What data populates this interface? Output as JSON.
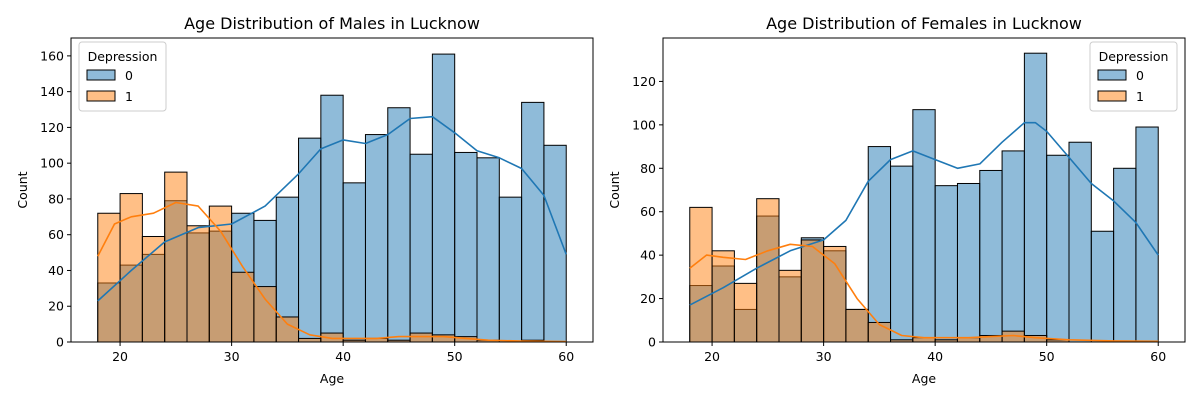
{
  "chart_data": [
    {
      "type": "bar",
      "title": "Age Distribution of Males in Lucknow",
      "xlabel": "Age",
      "ylabel": "Count",
      "xlim": [
        15.6,
        62.4
      ],
      "ylim": [
        0,
        170
      ],
      "xticks": [
        20,
        30,
        40,
        50,
        60
      ],
      "yticks": [
        0,
        20,
        40,
        60,
        80,
        100,
        120,
        140,
        160
      ],
      "bin_edges": [
        18,
        20,
        22,
        24,
        26,
        28,
        30,
        32,
        34,
        36,
        38,
        40,
        42,
        44,
        46,
        48,
        50,
        52,
        54,
        56,
        58,
        60
      ],
      "legend": {
        "title": "Depression",
        "position": "upper-left"
      },
      "series": [
        {
          "name": "0",
          "color": "#1f77b4",
          "values": [
            33,
            43,
            49,
            79,
            61,
            62,
            72,
            68,
            81,
            114,
            138,
            89,
            116,
            131,
            105,
            161,
            106,
            103,
            81,
            134,
            110
          ],
          "kde": [
            [
              18,
              23
            ],
            [
              21,
              40
            ],
            [
              24,
              56
            ],
            [
              27,
              64
            ],
            [
              30,
              66
            ],
            [
              33,
              76
            ],
            [
              36,
              94
            ],
            [
              38,
              108
            ],
            [
              40,
              113
            ],
            [
              42,
              111
            ],
            [
              44,
              116
            ],
            [
              46,
              125
            ],
            [
              48,
              126
            ],
            [
              50,
              117
            ],
            [
              52,
              107
            ],
            [
              54,
              103
            ],
            [
              56,
              97
            ],
            [
              58,
              82
            ],
            [
              60,
              49
            ]
          ]
        },
        {
          "name": "1",
          "color": "#ff7f0e",
          "values": [
            72,
            83,
            59,
            95,
            65,
            76,
            39,
            31,
            14,
            2,
            5,
            1,
            2,
            1,
            5,
            4,
            3,
            1,
            0,
            1,
            0
          ],
          "kde": [
            [
              18,
              48
            ],
            [
              19.5,
              66
            ],
            [
              21,
              70
            ],
            [
              23,
              72
            ],
            [
              25,
              78
            ],
            [
              27,
              76
            ],
            [
              29,
              62
            ],
            [
              31,
              42
            ],
            [
              33,
              24
            ],
            [
              35,
              10
            ],
            [
              37,
              4
            ],
            [
              39,
              2
            ],
            [
              41,
              2
            ],
            [
              43,
              2
            ],
            [
              45,
              3
            ],
            [
              47,
              3
            ],
            [
              49,
              3
            ],
            [
              51,
              2
            ],
            [
              53,
              1
            ],
            [
              56,
              0.5
            ],
            [
              60,
              0.3
            ]
          ]
        }
      ]
    },
    {
      "type": "bar",
      "title": "Age Distribution of Females in Lucknow",
      "xlabel": "Age",
      "ylabel": "Count",
      "xlim": [
        15.6,
        62.4
      ],
      "ylim": [
        0,
        140
      ],
      "xticks": [
        20,
        30,
        40,
        50,
        60
      ],
      "yticks": [
        0,
        20,
        40,
        60,
        80,
        100,
        120
      ],
      "bin_edges": [
        18,
        20,
        22,
        24,
        26,
        28,
        30,
        32,
        34,
        36,
        38,
        40,
        42,
        44,
        46,
        48,
        50,
        52,
        54,
        56,
        58,
        60
      ],
      "legend": {
        "title": "Depression",
        "position": "upper-right"
      },
      "series": [
        {
          "name": "0",
          "color": "#1f77b4",
          "values": [
            26,
            35,
            15,
            58,
            30,
            48,
            42,
            15,
            90,
            81,
            107,
            72,
            73,
            79,
            88,
            133,
            86,
            92,
            51,
            80,
            99
          ],
          "kde": [
            [
              18,
              17
            ],
            [
              21,
              25
            ],
            [
              24,
              34
            ],
            [
              27,
              42
            ],
            [
              30,
              47
            ],
            [
              32,
              56
            ],
            [
              34,
              74
            ],
            [
              36,
              84
            ],
            [
              38,
              88
            ],
            [
              40,
              84
            ],
            [
              42,
              80
            ],
            [
              44,
              82
            ],
            [
              46,
              92
            ],
            [
              48,
              101
            ],
            [
              49,
              101
            ],
            [
              50,
              97
            ],
            [
              52,
              85
            ],
            [
              54,
              73
            ],
            [
              56,
              65
            ],
            [
              58,
              55
            ],
            [
              60,
              40
            ]
          ]
        },
        {
          "name": "1",
          "color": "#ff7f0e",
          "values": [
            62,
            42,
            27,
            66,
            33,
            47,
            44,
            15,
            9,
            1,
            2,
            1,
            2,
            3,
            5,
            3,
            1,
            0,
            0,
            0,
            0
          ],
          "kde": [
            [
              18,
              34
            ],
            [
              19.5,
              40
            ],
            [
              21,
              39
            ],
            [
              23,
              38
            ],
            [
              25,
              42
            ],
            [
              27,
              45
            ],
            [
              29,
              44
            ],
            [
              31,
              36
            ],
            [
              33,
              20
            ],
            [
              35,
              8
            ],
            [
              37,
              3
            ],
            [
              39,
              2
            ],
            [
              41,
              2
            ],
            [
              43,
              2
            ],
            [
              45,
              2.5
            ],
            [
              47,
              3
            ],
            [
              49,
              2
            ],
            [
              52,
              1
            ],
            [
              56,
              0.5
            ],
            [
              60,
              0.3
            ]
          ]
        }
      ]
    }
  ]
}
